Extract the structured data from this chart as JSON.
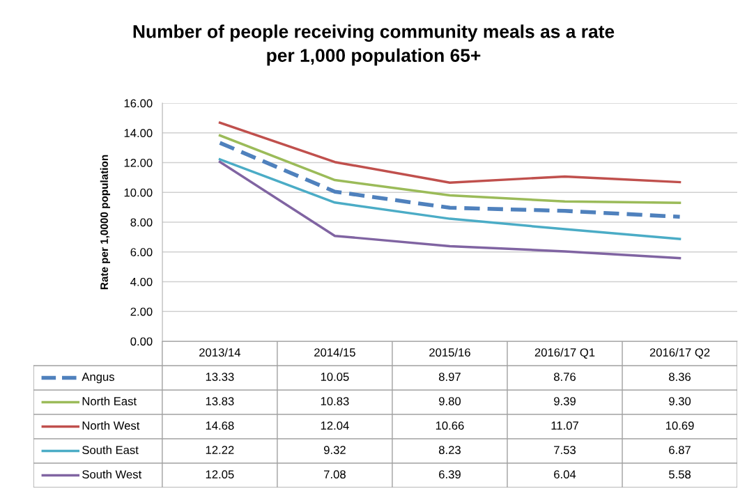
{
  "chart_data": {
    "type": "line",
    "title": "Number of people receiving community meals as a rate\nper 1,000 population 65+",
    "ylabel": "Rate per 1,0000 population",
    "categories": [
      "2013/14",
      "2014/15",
      "2015/16",
      "2016/17 Q1",
      "2016/17 Q2"
    ],
    "series": [
      {
        "name": "Angus",
        "color": "#4f81bd",
        "line_style": "dashed",
        "values": [
          13.33,
          10.05,
          8.97,
          8.76,
          8.36
        ],
        "value_labels": [
          "13.33",
          "10.05",
          "8.97",
          "8.76",
          "8.36"
        ]
      },
      {
        "name": "North East",
        "color": "#9bbb59",
        "values": [
          13.83,
          10.83,
          9.8,
          9.39,
          9.3
        ],
        "value_labels": [
          "13.83",
          "10.83",
          "9.80",
          "9.39",
          "9.30"
        ]
      },
      {
        "name": "North West",
        "color": "#c0504d",
        "values": [
          14.68,
          12.04,
          10.66,
          11.07,
          10.69
        ],
        "value_labels": [
          "14.68",
          "12.04",
          "10.66",
          "11.07",
          "10.69"
        ]
      },
      {
        "name": "South East",
        "color": "#4bacc6",
        "values": [
          12.22,
          9.32,
          8.23,
          7.53,
          6.87
        ],
        "value_labels": [
          "12.22",
          "9.32",
          "8.23",
          "7.53",
          "6.87"
        ]
      },
      {
        "name": "South West",
        "color": "#8064a2",
        "values": [
          12.05,
          7.08,
          6.39,
          6.04,
          5.58
        ],
        "value_labels": [
          "12.05",
          "7.08",
          "6.39",
          "6.04",
          "5.58"
        ]
      }
    ],
    "ylim": [
      0,
      16
    ],
    "yticks": [
      {
        "value": 0,
        "label": "0.00"
      },
      {
        "value": 2,
        "label": "2.00"
      },
      {
        "value": 4,
        "label": "4.00"
      },
      {
        "value": 6,
        "label": "6.00"
      },
      {
        "value": 8,
        "label": "8.00"
      },
      {
        "value": 10,
        "label": "10.00"
      },
      {
        "value": 12,
        "label": "12.00"
      },
      {
        "value": 14,
        "label": "14.00"
      },
      {
        "value": 16,
        "label": "16.00"
      }
    ],
    "grid": "y",
    "legend": "bottom",
    "line_style": "solid",
    "marker": "none"
  }
}
